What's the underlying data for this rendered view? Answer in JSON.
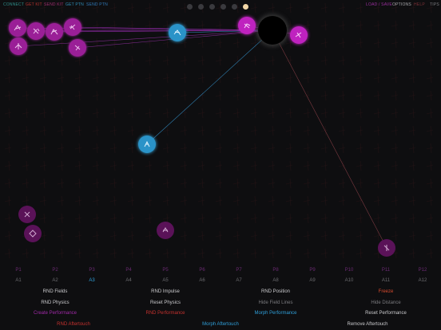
{
  "top_bar": {
    "left": [
      {
        "label": "CONNECT",
        "color": "#2f8f8a"
      },
      {
        "label": "GET KIT",
        "color": "#b3322e"
      },
      {
        "label": "SEND KIT",
        "color": "#9d2d6d"
      },
      {
        "label": "GET PTN",
        "color": "#2f8fb8"
      },
      {
        "label": "SEND PTN",
        "color": "#2f79b8"
      }
    ],
    "right": [
      {
        "label": "LOAD / SAVE",
        "color": "#9a2f9e"
      },
      {
        "label": "OPTIONS",
        "color": "#a8a8ac"
      },
      {
        "label": "HELP",
        "color": "#7a2f35"
      },
      {
        "label": "TIPS",
        "color": "#7a7a7e"
      }
    ],
    "page_dots": 6,
    "active_dot": 5
  },
  "performances": [
    "P1",
    "P2",
    "P3",
    "P4",
    "P5",
    "P6",
    "P7",
    "P8",
    "P9",
    "P10",
    "P11",
    "P12"
  ],
  "assignments": [
    "A1",
    "A2",
    "A3",
    "A4",
    "A5",
    "A6",
    "A7",
    "A8",
    "A9",
    "A10",
    "A11",
    "A12"
  ],
  "selected_assignment": 2,
  "actions": {
    "rnd_fields": {
      "label": "RND Fields",
      "color": "#c9c9cc"
    },
    "rnd_impulse": {
      "label": "RND Impulse",
      "color": "#c9c9cc"
    },
    "rnd_position": {
      "label": "RND Position",
      "color": "#c9c9cc"
    },
    "freeze": {
      "label": "Freeze",
      "color": "#d64a2e"
    },
    "rnd_physics": {
      "label": "RND Physics",
      "color": "#c9c9cc"
    },
    "reset_physics": {
      "label": "Reset Physics",
      "color": "#c9c9cc"
    },
    "hide_field_lines": {
      "label": "Hide Field Lines",
      "color": "#7a7a7e"
    },
    "hide_distance": {
      "label": "Hide Distance",
      "color": "#7a7a7e"
    },
    "create_performance": {
      "label": "Create Performance",
      "color": "#a02aa8"
    },
    "rnd_performance": {
      "label": "RND Performance",
      "color": "#c4312e"
    },
    "morph_performance": {
      "label": "Morph Performance",
      "color": "#2f9ed8"
    },
    "reset_performance": {
      "label": "Reset Performance",
      "color": "#c9c9cc"
    },
    "rnd_aftertouch": {
      "label": "RND Aftertouch",
      "color": "#c4312e"
    },
    "morph_aftertouch": {
      "label": "Morph Aftertouch",
      "color": "#2f9ed8"
    },
    "remove_aftertouch": {
      "label": "Remove Aftertouch",
      "color": "#c9c9cc"
    }
  },
  "colors": {
    "background": "#0e0e10",
    "node_purple": "#9a1f97",
    "node_cyan": "#2a93c8",
    "node_magenta": "#bf22bf"
  },
  "icons": {
    "node": "instrument-glyph-icon",
    "attractor": "black-hole-icon"
  }
}
